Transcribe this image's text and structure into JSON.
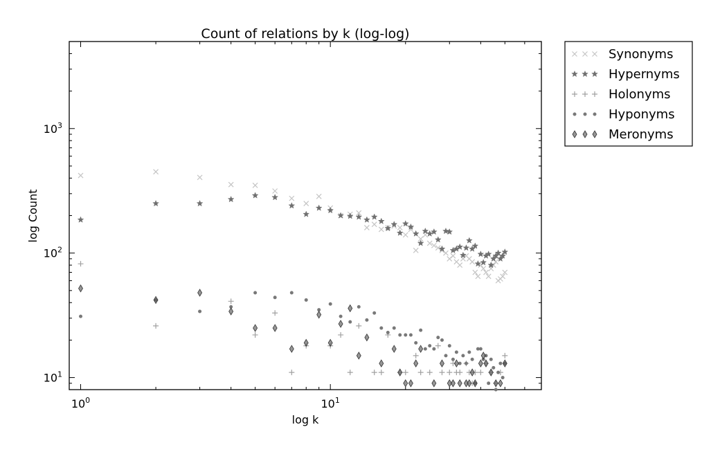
{
  "chart_data": {
    "type": "scatter",
    "title": "Count of relations by k (log-log)",
    "xlabel": "log k",
    "ylabel": "log Count",
    "xscale": "log",
    "yscale": "log",
    "xlim": [
      0.9,
      70
    ],
    "ylim": [
      8,
      5000
    ],
    "xticks": [
      {
        "value": 1,
        "label": "10",
        "exp": "0"
      },
      {
        "value": 10,
        "label": "10",
        "exp": "1"
      }
    ],
    "yticks": [
      {
        "value": 10,
        "label": "10",
        "exp": "1"
      },
      {
        "value": 100,
        "label": "10",
        "exp": "2"
      },
      {
        "value": 1000,
        "label": "10",
        "exp": "3"
      }
    ],
    "grid": false,
    "legend": "outside-top-right",
    "series": [
      {
        "name": "Synonyms",
        "marker": "x",
        "color": "#c4c4c4",
        "x": [
          1,
          2,
          3,
          4,
          5,
          6,
          7,
          8,
          9,
          10,
          11,
          12,
          13,
          14,
          15,
          16,
          17,
          18,
          19,
          20,
          21,
          22,
          23,
          24,
          25,
          26,
          27,
          28,
          29,
          30,
          31,
          32,
          33,
          34,
          35,
          36,
          37,
          38,
          39,
          40,
          41,
          42,
          43,
          44,
          45,
          46,
          47,
          48,
          49,
          50
        ],
        "y": [
          420,
          450,
          405,
          355,
          350,
          315,
          275,
          250,
          285,
          230,
          200,
          205,
          210,
          160,
          170,
          155,
          160,
          165,
          160,
          140,
          155,
          105,
          130,
          140,
          120,
          115,
          110,
          105,
          100,
          90,
          95,
          85,
          80,
          90,
          95,
          90,
          85,
          70,
          65,
          80,
          75,
          70,
          65,
          75,
          80,
          85,
          60,
          62,
          65,
          70
        ]
      },
      {
        "name": "Hypernyms",
        "marker": "*",
        "color": "#707070",
        "x": [
          1,
          2,
          3,
          4,
          5,
          6,
          7,
          8,
          9,
          10,
          11,
          12,
          13,
          14,
          15,
          16,
          17,
          18,
          19,
          20,
          21,
          22,
          23,
          24,
          25,
          26,
          27,
          28,
          29,
          30,
          31,
          32,
          33,
          34,
          35,
          36,
          37,
          38,
          39,
          40,
          41,
          42,
          43,
          44,
          45,
          46,
          47,
          48,
          49,
          50
        ],
        "y": [
          185,
          250,
          250,
          270,
          290,
          280,
          240,
          205,
          230,
          220,
          200,
          198,
          195,
          185,
          195,
          180,
          158,
          170,
          145,
          172,
          162,
          143,
          120,
          150,
          143,
          148,
          128,
          108,
          150,
          148,
          105,
          108,
          112,
          96,
          110,
          126,
          108,
          114,
          82,
          98,
          84,
          95,
          98,
          80,
          90,
          95,
          100,
          90,
          95,
          102
        ]
      },
      {
        "name": "Holonyms",
        "marker": "+",
        "color": "#a0a0a0",
        "x": [
          1,
          2,
          4,
          5,
          6,
          7,
          8,
          10,
          11,
          12,
          13,
          15,
          16,
          17,
          19,
          20,
          22,
          23,
          25,
          27,
          28,
          30,
          31,
          32,
          33,
          35,
          36,
          37,
          38,
          40,
          42,
          44,
          46,
          48,
          50
        ],
        "y": [
          82,
          26,
          41,
          22,
          33,
          11,
          18,
          18,
          22,
          11,
          26,
          11,
          11,
          22,
          11,
          11,
          15,
          11,
          11,
          18,
          11,
          11,
          13,
          11,
          11,
          13,
          11,
          9,
          11,
          11,
          13,
          11,
          9,
          11,
          15
        ]
      },
      {
        "name": "Hyponyms",
        "marker": "o",
        "color": "#787878",
        "x": [
          1,
          2,
          3,
          4,
          5,
          6,
          7,
          8,
          9,
          10,
          11,
          12,
          13,
          14,
          15,
          16,
          17,
          18,
          19,
          20,
          21,
          22,
          23,
          24,
          25,
          26,
          27,
          28,
          29,
          30,
          31,
          32,
          33,
          34,
          35,
          36,
          37,
          38,
          39,
          40,
          41,
          42,
          43,
          44,
          45,
          46,
          47,
          48,
          49,
          50
        ],
        "y": [
          31,
          42,
          34,
          37,
          48,
          44,
          48,
          42,
          35,
          39,
          31,
          28,
          37,
          29,
          33,
          25,
          23,
          25,
          22,
          22,
          22,
          19,
          24,
          17,
          18,
          17,
          21,
          20,
          15,
          18,
          14,
          16,
          13,
          15,
          13,
          16,
          14,
          9,
          17,
          17,
          14,
          15,
          9,
          14,
          12,
          8,
          11,
          13,
          10,
          13
        ]
      },
      {
        "name": "Meronyms",
        "marker": "d",
        "color": "#505050",
        "x": [
          1,
          2,
          3,
          4,
          5,
          6,
          7,
          8,
          9,
          10,
          11,
          12,
          13,
          14,
          16,
          18,
          19,
          20,
          21,
          22,
          23,
          26,
          28,
          30,
          31,
          32,
          33,
          35,
          36,
          37,
          38,
          40,
          41,
          42,
          44,
          46,
          48,
          50
        ],
        "y": [
          52,
          42,
          48,
          34,
          25,
          25,
          17,
          19,
          32,
          19,
          27,
          36,
          15,
          21,
          13,
          17,
          11,
          9,
          9,
          13,
          17,
          9,
          13,
          9,
          9,
          13,
          9,
          9,
          9,
          11,
          9,
          13,
          15,
          13,
          11,
          9,
          9,
          13
        ]
      }
    ]
  }
}
